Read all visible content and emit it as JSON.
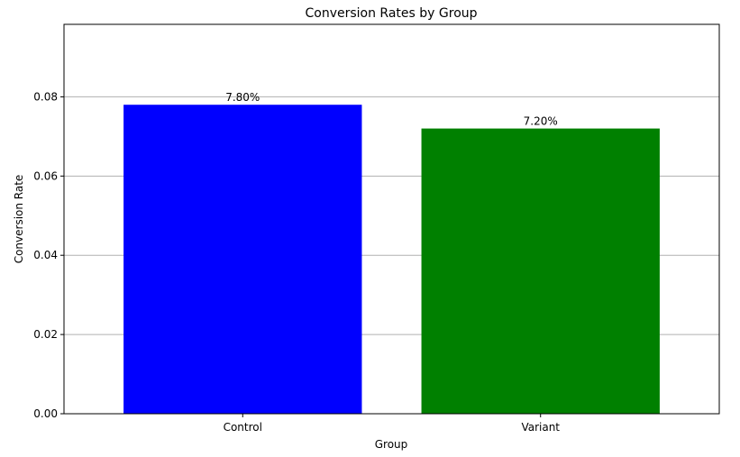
{
  "chart_data": {
    "type": "bar",
    "title": "Conversion Rates by Group",
    "xlabel": "Group",
    "ylabel": "Conversion Rate",
    "categories": [
      "Control",
      "Variant"
    ],
    "values": [
      0.078,
      0.072
    ],
    "data_labels": [
      "7.80%",
      "7.20%"
    ],
    "bar_colors": [
      "#0000ff",
      "#008000"
    ],
    "ylim": [
      0,
      0.0983
    ],
    "yticks": [
      0.0,
      0.02,
      0.04,
      0.06,
      0.08
    ],
    "ytick_labels": [
      "0.00",
      "0.02",
      "0.04",
      "0.06",
      "0.08"
    ],
    "grid": "y-major",
    "grid_color": "#b0b0b0",
    "legend": "none"
  }
}
